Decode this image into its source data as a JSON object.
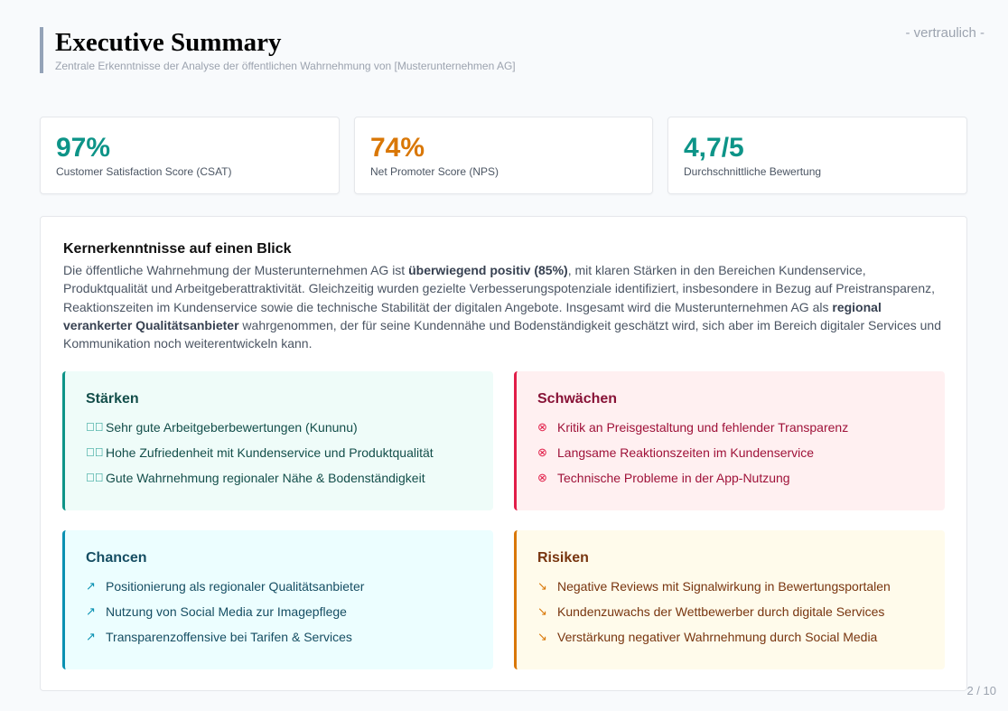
{
  "header": {
    "title": "Executive Summary",
    "subtitle": "Zentrale Erkenntnisse der Analyse der öffentlichen Wahrnehmung von [Musterunternehmen AG]",
    "confidential": "- vertraulich -"
  },
  "kpis": [
    {
      "value": "97%",
      "label": "Customer Satisfaction Score (CSAT)",
      "color": "#0d9488"
    },
    {
      "value": "74%",
      "label": "Net Promoter Score (NPS)",
      "color": "#d97706"
    },
    {
      "value": "4,7/5",
      "label": "Durchschnittliche Bewertung",
      "color": "#0d9488"
    }
  ],
  "summary": {
    "heading": "Kernerkenntnisse auf einen Blick",
    "p1": "Die öffentliche Wahrnehmung der Musterunternehmen AG ist ",
    "b1": "überwiegend positiv (85%)",
    "p2": ", mit klaren Stärken in den Bereichen Kundenservice, Produktqualität und Arbeitgeberattraktivität. Gleichzeitig wurden gezielte Verbesserungspotenziale identifiziert, insbesondere in Bezug auf Preistransparenz, Reaktionszeiten im Kundenservice sowie die technische Stabilität der digitalen Angebote. Insgesamt wird die Musterunternehmen AG als ",
    "b2": "regional verankerter Qualitätsanbieter",
    "p3": " wahrgenommen, der für seine Kundennähe und Bodenständigkeit geschätzt wird, sich aber im Bereich digitaler Services und Kommunikation noch weiterentwickeln kann."
  },
  "quadrants": {
    "strengths": {
      "title": "Stärken",
      "icon": "check-circle",
      "items": [
        "Sehr gute Arbeitgeberbewertungen (Kununu)",
        "Hohe Zufriedenheit mit Kundenservice und Produktqualität",
        "Gute Wahrnehmung regionaler Nähe & Bodenständigkeit"
      ]
    },
    "weaknesses": {
      "title": "Schwächen",
      "icon": "x-circle",
      "items": [
        "Kritik an Preisgestaltung und fehlender Transparenz",
        "Langsame Reaktionszeiten im Kundenservice",
        "Technische Probleme in der App-Nutzung"
      ]
    },
    "opportunities": {
      "title": "Chancen",
      "icon": "arrow-up-right",
      "items": [
        "Positionierung als regionaler Qualitätsanbieter",
        "Nutzung von Social Media zur Imagepflege",
        "Transparenzoffensive bei Tarifen & Services"
      ]
    },
    "risks": {
      "title": "Risiken",
      "icon": "arrow-down-right",
      "items": [
        "Negative Reviews mit Signalwirkung in Bewertungsportalen",
        "Kundenzuwachs der Wettbewerber durch digitale Services",
        "Verstärkung negativer Wahrnehmung durch Social Media"
      ]
    }
  },
  "page": "2 / 10"
}
